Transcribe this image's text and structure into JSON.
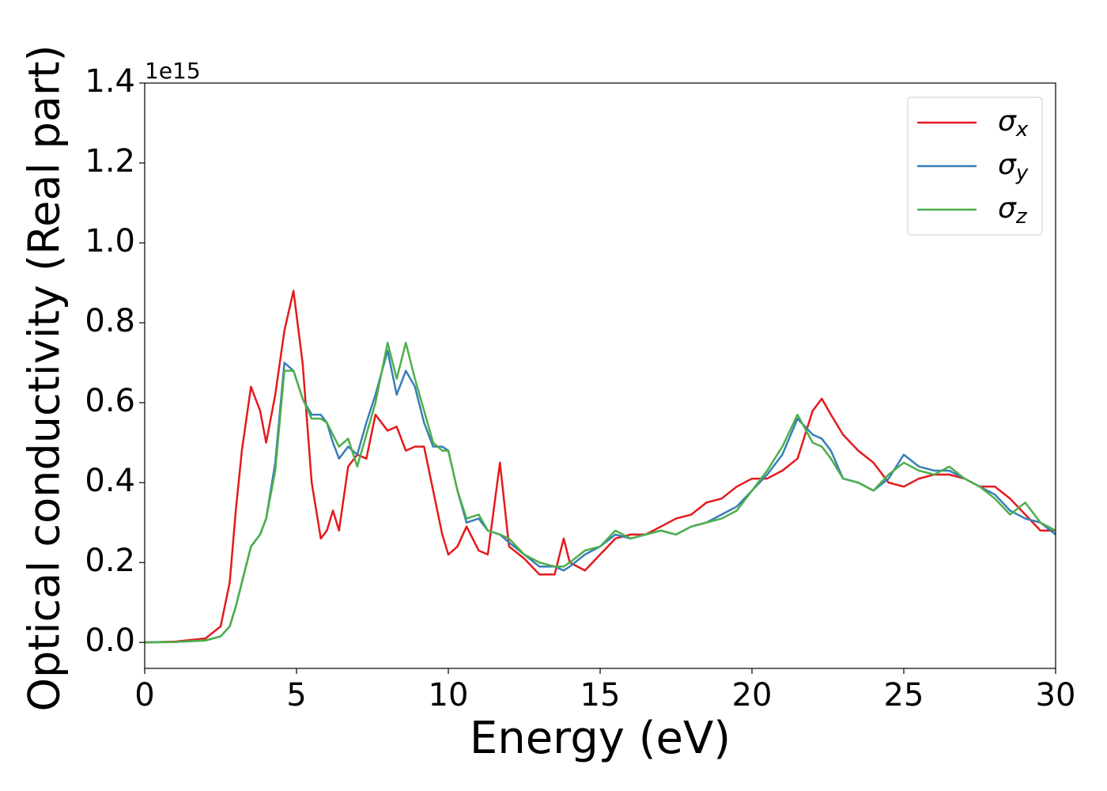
{
  "chart_data": {
    "type": "line",
    "xlabel": "Energy (eV)",
    "ylabel": "Optical conductivity (Real part)",
    "offset_text": "1e15",
    "x": [
      0,
      1,
      2,
      2.5,
      2.8,
      3,
      3.2,
      3.5,
      3.8,
      4,
      4.3,
      4.6,
      4.9,
      5.2,
      5.5,
      5.8,
      6,
      6.2,
      6.4,
      6.7,
      7,
      7.3,
      7.6,
      8,
      8.3,
      8.6,
      8.9,
      9.2,
      9.5,
      9.8,
      10,
      10.3,
      10.6,
      11,
      11.3,
      11.7,
      12,
      12.5,
      13,
      13.5,
      13.8,
      14,
      14.5,
      15,
      15.5,
      16,
      16.5,
      17,
      17.5,
      18,
      18.5,
      19,
      19.5,
      20,
      20.5,
      21,
      21.5,
      22,
      22.3,
      22.6,
      23,
      23.5,
      24,
      24.5,
      25,
      25.5,
      26,
      26.5,
      27,
      27.5,
      28,
      28.5,
      29,
      29.5,
      30
    ],
    "series": [
      {
        "name": "σx",
        "color": "#e41a1c",
        "values": [
          0,
          0.002,
          0.01,
          0.04,
          0.15,
          0.33,
          0.48,
          0.64,
          0.58,
          0.5,
          0.62,
          0.78,
          0.88,
          0.7,
          0.4,
          0.26,
          0.28,
          0.33,
          0.28,
          0.44,
          0.47,
          0.46,
          0.57,
          0.53,
          0.54,
          0.48,
          0.49,
          0.49,
          0.38,
          0.27,
          0.22,
          0.24,
          0.29,
          0.23,
          0.22,
          0.45,
          0.24,
          0.21,
          0.17,
          0.17,
          0.26,
          0.2,
          0.18,
          0.22,
          0.26,
          0.27,
          0.27,
          0.29,
          0.31,
          0.32,
          0.35,
          0.36,
          0.39,
          0.41,
          0.41,
          0.43,
          0.46,
          0.58,
          0.61,
          0.57,
          0.52,
          0.48,
          0.45,
          0.4,
          0.39,
          0.41,
          0.42,
          0.42,
          0.41,
          0.39,
          0.39,
          0.36,
          0.32,
          0.28,
          0.28
        ]
      },
      {
        "name": "σy",
        "color": "#377eb8",
        "values": [
          0,
          0.001,
          0.005,
          0.015,
          0.04,
          0.09,
          0.15,
          0.24,
          0.27,
          0.31,
          0.45,
          0.7,
          0.68,
          0.61,
          0.57,
          0.57,
          0.55,
          0.5,
          0.46,
          0.49,
          0.47,
          0.55,
          0.62,
          0.73,
          0.62,
          0.68,
          0.64,
          0.55,
          0.49,
          0.49,
          0.48,
          0.38,
          0.3,
          0.31,
          0.28,
          0.27,
          0.25,
          0.22,
          0.19,
          0.19,
          0.18,
          0.19,
          0.22,
          0.24,
          0.27,
          0.26,
          0.27,
          0.28,
          0.27,
          0.29,
          0.3,
          0.32,
          0.34,
          0.38,
          0.42,
          0.47,
          0.56,
          0.52,
          0.51,
          0.48,
          0.41,
          0.4,
          0.38,
          0.41,
          0.47,
          0.44,
          0.43,
          0.43,
          0.41,
          0.39,
          0.37,
          0.33,
          0.31,
          0.3,
          0.27
        ]
      },
      {
        "name": "σz",
        "color": "#4daf4a",
        "values": [
          0,
          0.001,
          0.005,
          0.015,
          0.04,
          0.09,
          0.15,
          0.24,
          0.27,
          0.31,
          0.43,
          0.68,
          0.68,
          0.61,
          0.56,
          0.56,
          0.55,
          0.52,
          0.49,
          0.51,
          0.44,
          0.52,
          0.6,
          0.75,
          0.66,
          0.75,
          0.66,
          0.58,
          0.5,
          0.48,
          0.48,
          0.38,
          0.31,
          0.32,
          0.28,
          0.27,
          0.26,
          0.22,
          0.2,
          0.19,
          0.19,
          0.2,
          0.23,
          0.24,
          0.28,
          0.26,
          0.27,
          0.28,
          0.27,
          0.29,
          0.3,
          0.31,
          0.33,
          0.38,
          0.43,
          0.49,
          0.57,
          0.5,
          0.49,
          0.46,
          0.41,
          0.4,
          0.38,
          0.42,
          0.45,
          0.43,
          0.42,
          0.44,
          0.41,
          0.39,
          0.36,
          0.32,
          0.35,
          0.3,
          0.28
        ]
      }
    ],
    "xlim": [
      0,
      30
    ],
    "xticks": [
      0,
      5,
      10,
      15,
      20,
      25,
      30
    ],
    "ylim": [
      -0.065,
      1.4
    ],
    "yticks": [
      {
        "value": 0,
        "label": "0.0"
      },
      0.2,
      0.4,
      0.6,
      0.8,
      {
        "value": 1,
        "label": "1.0"
      },
      1.2,
      1.4
    ],
    "legend": "upper right"
  }
}
